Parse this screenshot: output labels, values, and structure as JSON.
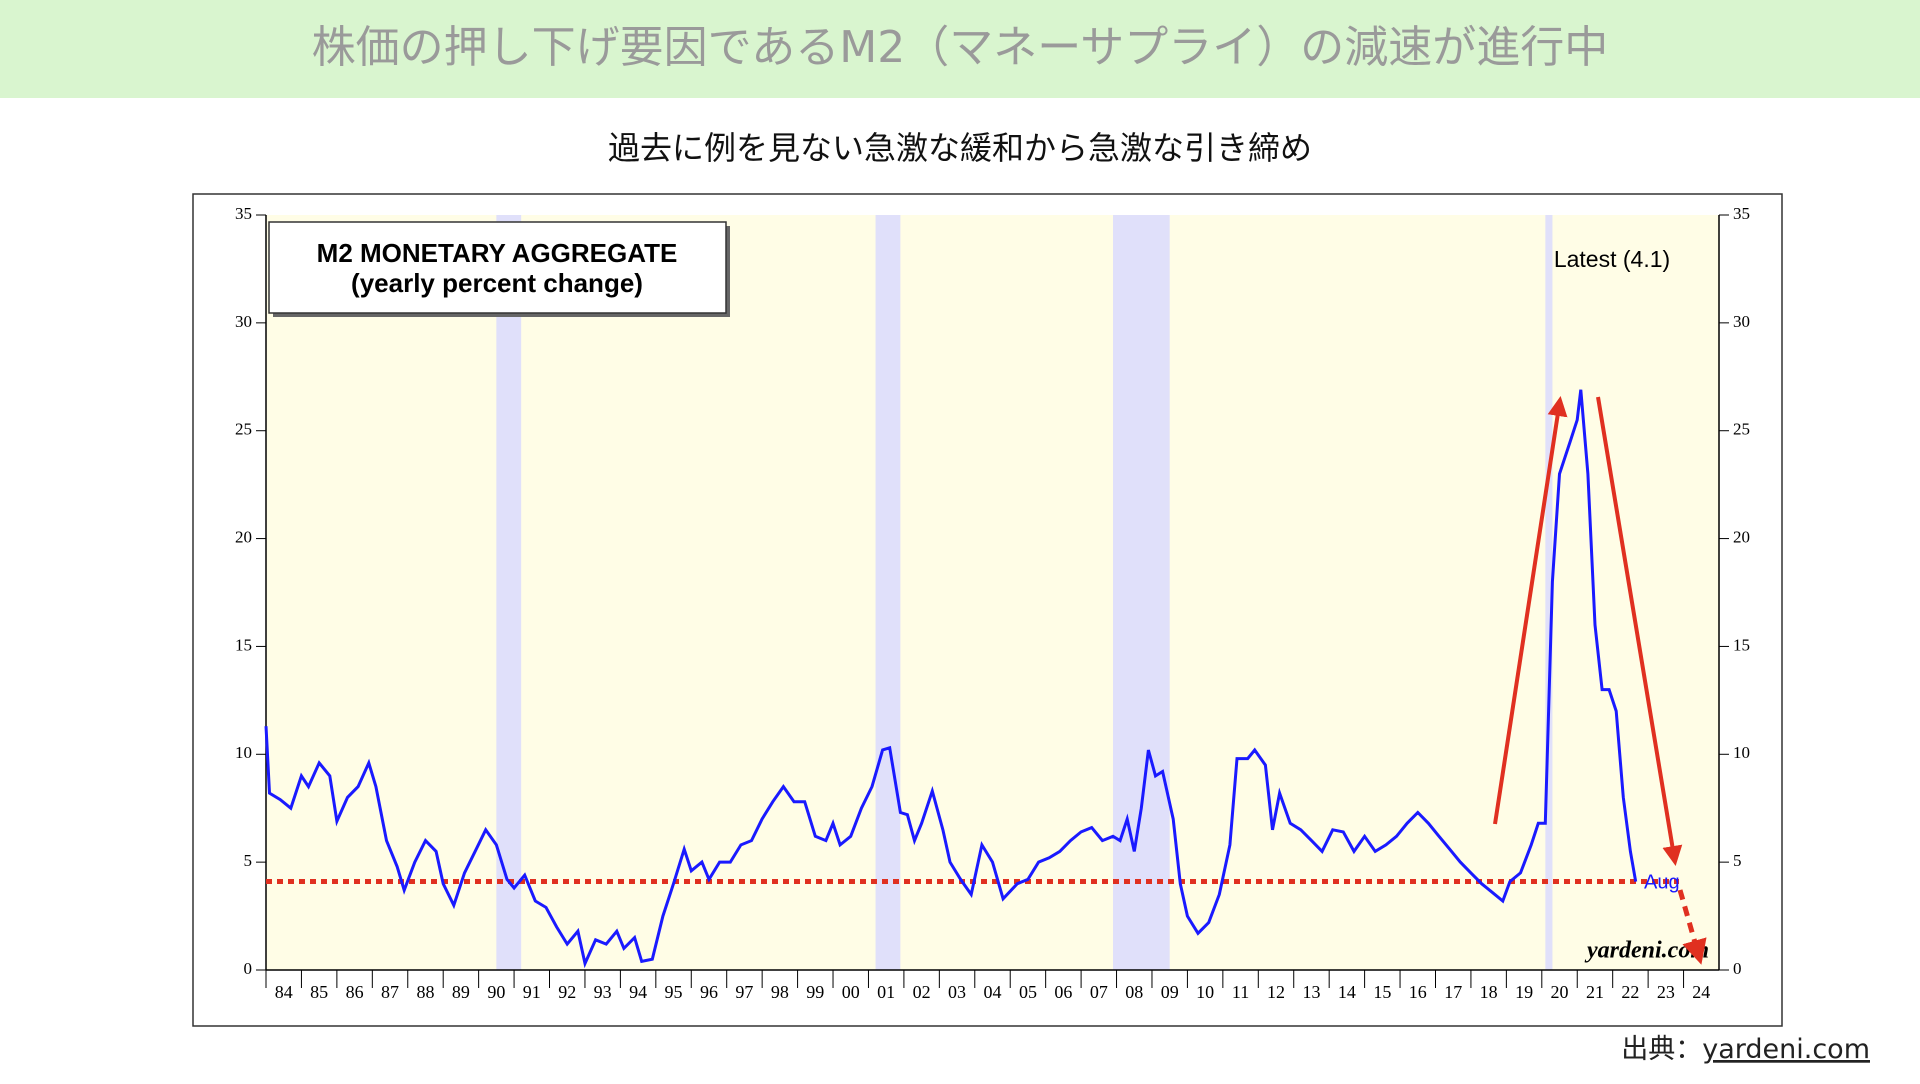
{
  "header": {
    "title": "株価の押し下げ要因であるM2（マネーサプライ）の減速が進行中",
    "subtitle": "過去に例を見ない急激な緩和から急激な引き締め"
  },
  "chart_data": {
    "type": "line",
    "title": "M2 MONETARY AGGREGATE",
    "subtitle": "(yearly percent change)",
    "annotations": {
      "latest": "Latest (4.1)",
      "last_month": "Aug",
      "watermark": "yardeni.com"
    },
    "reference_line": {
      "value": 4.1,
      "color": "#e03020"
    },
    "recessions": [
      [
        1990.5,
        1991.2
      ],
      [
        2001.2,
        2001.9
      ],
      [
        2007.9,
        2009.5
      ],
      [
        2020.1,
        2020.3
      ]
    ],
    "xlim": [
      1984,
      2025
    ],
    "xticks": [
      {
        "value": 1984,
        "label": "84"
      },
      {
        "value": 1985,
        "label": "85"
      },
      {
        "value": 1986,
        "label": "86"
      },
      {
        "value": 1987,
        "label": "87"
      },
      {
        "value": 1988,
        "label": "88"
      },
      {
        "value": 1989,
        "label": "89"
      },
      {
        "value": 1990,
        "label": "90"
      },
      {
        "value": 1991,
        "label": "91"
      },
      {
        "value": 1992,
        "label": "92"
      },
      {
        "value": 1993,
        "label": "93"
      },
      {
        "value": 1994,
        "label": "94"
      },
      {
        "value": 1995,
        "label": "95"
      },
      {
        "value": 1996,
        "label": "96"
      },
      {
        "value": 1997,
        "label": "97"
      },
      {
        "value": 1998,
        "label": "98"
      },
      {
        "value": 1999,
        "label": "99"
      },
      {
        "value": 2000,
        "label": "00"
      },
      {
        "value": 2001,
        "label": "01"
      },
      {
        "value": 2002,
        "label": "02"
      },
      {
        "value": 2003,
        "label": "03"
      },
      {
        "value": 2004,
        "label": "04"
      },
      {
        "value": 2005,
        "label": "05"
      },
      {
        "value": 2006,
        "label": "06"
      },
      {
        "value": 2007,
        "label": "07"
      },
      {
        "value": 2008,
        "label": "08"
      },
      {
        "value": 2009,
        "label": "09"
      },
      {
        "value": 2010,
        "label": "10"
      },
      {
        "value": 2011,
        "label": "11"
      },
      {
        "value": 2012,
        "label": "12"
      },
      {
        "value": 2013,
        "label": "13"
      },
      {
        "value": 2014,
        "label": "14"
      },
      {
        "value": 2015,
        "label": "15"
      },
      {
        "value": 2016,
        "label": "16"
      },
      {
        "value": 2017,
        "label": "17"
      },
      {
        "value": 2018,
        "label": "18"
      },
      {
        "value": 2019,
        "label": "19"
      },
      {
        "value": 2020,
        "label": "20"
      },
      {
        "value": 2021,
        "label": "21"
      },
      {
        "value": 2022,
        "label": "22"
      },
      {
        "value": 2023,
        "label": "23"
      },
      {
        "value": 2024,
        "label": "24"
      }
    ],
    "ylim": [
      0,
      35
    ],
    "yticks": [
      0,
      5,
      10,
      15,
      20,
      25,
      30,
      35
    ],
    "y2lim": [
      0,
      35
    ],
    "y2ticks": [
      0,
      5,
      10,
      15,
      20,
      25,
      30,
      35
    ],
    "series": [
      {
        "name": "M2",
        "color": "#1a1aff",
        "x": [
          1984.0,
          1984.1,
          1984.4,
          1984.7,
          1985.0,
          1985.2,
          1985.5,
          1985.8,
          1986.0,
          1986.3,
          1986.6,
          1986.9,
          1987.1,
          1987.4,
          1987.7,
          1987.9,
          1988.2,
          1988.5,
          1988.8,
          1989.0,
          1989.3,
          1989.6,
          1989.9,
          1990.2,
          1990.5,
          1990.8,
          1991.0,
          1991.3,
          1991.6,
          1991.9,
          1992.2,
          1992.5,
          1992.8,
          1993.0,
          1993.3,
          1993.6,
          1993.9,
          1994.1,
          1994.4,
          1994.6,
          1994.9,
          1995.2,
          1995.5,
          1995.8,
          1996.0,
          1996.3,
          1996.5,
          1996.8,
          1997.1,
          1997.4,
          1997.7,
          1998.0,
          1998.3,
          1998.6,
          1998.9,
          1999.2,
          1999.5,
          1999.8,
          2000.0,
          2000.2,
          2000.5,
          2000.8,
          2001.1,
          2001.4,
          2001.6,
          2001.9,
          2002.1,
          2002.3,
          2002.5,
          2002.8,
          2003.1,
          2003.3,
          2003.6,
          2003.9,
          2004.2,
          2004.5,
          2004.8,
          2005.2,
          2005.5,
          2005.8,
          2006.1,
          2006.4,
          2006.7,
          2007.0,
          2007.3,
          2007.6,
          2007.9,
          2008.1,
          2008.3,
          2008.5,
          2008.7,
          2008.9,
          2009.1,
          2009.3,
          2009.6,
          2009.8,
          2010.0,
          2010.3,
          2010.6,
          2010.9,
          2011.2,
          2011.4,
          2011.7,
          2011.9,
          2012.2,
          2012.4,
          2012.6,
          2012.9,
          2013.2,
          2013.5,
          2013.8,
          2014.1,
          2014.4,
          2014.7,
          2015.0,
          2015.3,
          2015.6,
          2015.9,
          2016.2,
          2016.5,
          2016.8,
          2017.1,
          2017.4,
          2017.7,
          2018.0,
          2018.3,
          2018.6,
          2018.9,
          2019.1,
          2019.4,
          2019.7,
          2019.9,
          2020.1,
          2020.3,
          2020.5,
          2020.8,
          2021.0,
          2021.1,
          2021.3,
          2021.5,
          2021.7,
          2021.9,
          2022.1,
          2022.3,
          2022.5,
          2022.65
        ],
        "values": [
          11.3,
          8.2,
          7.9,
          7.5,
          9.0,
          8.5,
          9.6,
          9.0,
          6.9,
          8.0,
          8.5,
          9.6,
          8.5,
          6.0,
          4.8,
          3.7,
          5.0,
          6.0,
          5.5,
          4.0,
          3.0,
          4.5,
          5.5,
          6.5,
          5.8,
          4.2,
          3.8,
          4.4,
          3.2,
          2.9,
          2.0,
          1.2,
          1.8,
          0.3,
          1.4,
          1.2,
          1.8,
          1.0,
          1.5,
          0.4,
          0.5,
          2.5,
          4.0,
          5.6,
          4.6,
          5.0,
          4.2,
          5.0,
          5.0,
          5.8,
          6.0,
          7.0,
          7.8,
          8.5,
          7.8,
          7.8,
          6.2,
          6.0,
          6.8,
          5.8,
          6.2,
          7.5,
          8.5,
          10.2,
          10.3,
          7.3,
          7.2,
          6.0,
          6.8,
          8.3,
          6.5,
          5.0,
          4.2,
          3.5,
          5.8,
          5.0,
          3.3,
          4.0,
          4.2,
          5.0,
          5.2,
          5.5,
          6.0,
          6.4,
          6.6,
          6.0,
          6.2,
          6.0,
          7.0,
          5.5,
          7.5,
          10.2,
          9.0,
          9.2,
          7.0,
          4.0,
          2.5,
          1.7,
          2.2,
          3.5,
          5.8,
          9.8,
          9.8,
          10.2,
          9.5,
          6.5,
          8.2,
          6.8,
          6.5,
          6.0,
          5.5,
          6.5,
          6.4,
          5.5,
          6.2,
          5.5,
          5.8,
          6.2,
          6.8,
          7.3,
          6.8,
          6.2,
          5.6,
          5.0,
          4.5,
          4.0,
          3.6,
          3.2,
          4.1,
          4.5,
          5.8,
          6.8,
          6.8,
          18.0,
          23.0,
          24.5,
          25.5,
          26.9,
          23.0,
          16.0,
          13.0,
          13.0,
          12.0,
          8.0,
          5.5,
          4.1
        ]
      }
    ]
  },
  "footer": {
    "source_label": "出典：",
    "source": "yardeni.com"
  }
}
